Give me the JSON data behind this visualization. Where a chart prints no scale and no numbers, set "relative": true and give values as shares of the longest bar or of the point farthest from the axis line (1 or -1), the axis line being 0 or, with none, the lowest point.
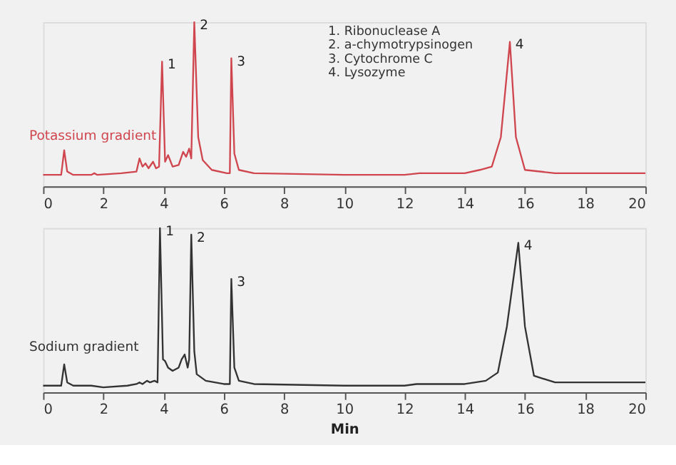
{
  "chart_data": [
    {
      "type": "line",
      "relative": true,
      "xlim": [
        0,
        20
      ],
      "xticks": [
        0,
        2,
        4,
        6,
        8,
        10,
        12,
        14,
        16,
        18,
        20
      ],
      "grid": false,
      "annotations": [
        "1.   Ribonuclease A",
        "2.   a-chymotrypsinogen",
        "3.   Cytochrome C",
        "4.   Lysozyme",
        {
          "text": "1",
          "x": 3.95,
          "y": 0.76
        },
        {
          "text": "2",
          "x": 5.02,
          "y": 1.0
        },
        {
          "text": "3",
          "x": 6.25,
          "y": 0.78
        },
        {
          "text": "4",
          "x": 15.5,
          "y": 0.88
        }
      ],
      "series": [
        {
          "name": "Potassium gradient",
          "color": "#d0464f",
          "x": [
            0,
            0.6,
            0.7,
            0.8,
            1.0,
            1.6,
            1.7,
            1.8,
            2.6,
            3.1,
            3.2,
            3.3,
            3.4,
            3.5,
            3.65,
            3.75,
            3.85,
            3.95,
            4.05,
            4.15,
            4.3,
            4.5,
            4.65,
            4.75,
            4.85,
            4.92,
            5.02,
            5.15,
            5.3,
            5.6,
            6.1,
            6.2,
            6.25,
            6.35,
            6.5,
            7,
            10,
            12,
            12.5,
            14,
            14.5,
            14.9,
            15.2,
            15.5,
            15.7,
            16,
            17,
            20
          ],
          "values": [
            0.07,
            0.07,
            0.22,
            0.09,
            0.07,
            0.07,
            0.08,
            0.07,
            0.08,
            0.09,
            0.17,
            0.12,
            0.14,
            0.11,
            0.15,
            0.11,
            0.12,
            0.76,
            0.15,
            0.19,
            0.12,
            0.13,
            0.21,
            0.18,
            0.23,
            0.17,
            1.0,
            0.3,
            0.16,
            0.1,
            0.08,
            0.08,
            0.78,
            0.2,
            0.1,
            0.08,
            0.07,
            0.07,
            0.08,
            0.08,
            0.1,
            0.12,
            0.3,
            0.88,
            0.3,
            0.1,
            0.08,
            0.08
          ]
        }
      ]
    },
    {
      "type": "line",
      "relative": true,
      "xlim": [
        0,
        20
      ],
      "xticks": [
        0,
        2,
        4,
        6,
        8,
        10,
        12,
        14,
        16,
        18,
        20
      ],
      "xlabel": "Min",
      "grid": false,
      "annotations": [
        {
          "text": "1",
          "x": 3.88,
          "y": 1.0
        },
        {
          "text": "2",
          "x": 4.92,
          "y": 0.96
        },
        {
          "text": "3",
          "x": 6.25,
          "y": 0.69
        },
        {
          "text": "4",
          "x": 15.78,
          "y": 0.91
        }
      ],
      "series": [
        {
          "name": "Sodium gradient",
          "color": "#333333",
          "x": [
            0,
            0.6,
            0.7,
            0.8,
            1.0,
            1.6,
            2.0,
            2.8,
            3.1,
            3.2,
            3.3,
            3.45,
            3.55,
            3.7,
            3.8,
            3.88,
            3.98,
            4.05,
            4.15,
            4.3,
            4.5,
            4.6,
            4.7,
            4.8,
            4.85,
            4.92,
            5.02,
            5.1,
            5.4,
            6.0,
            6.2,
            6.25,
            6.35,
            6.5,
            7,
            10,
            12,
            12.4,
            14,
            14.7,
            15.1,
            15.4,
            15.78,
            16.0,
            16.3,
            17,
            20
          ],
          "values": [
            0.04,
            0.04,
            0.17,
            0.06,
            0.04,
            0.04,
            0.03,
            0.04,
            0.05,
            0.06,
            0.05,
            0.07,
            0.06,
            0.07,
            0.06,
            1.0,
            0.2,
            0.19,
            0.15,
            0.13,
            0.15,
            0.2,
            0.23,
            0.15,
            0.2,
            0.96,
            0.25,
            0.11,
            0.07,
            0.05,
            0.05,
            0.69,
            0.15,
            0.07,
            0.05,
            0.04,
            0.04,
            0.05,
            0.05,
            0.07,
            0.12,
            0.4,
            0.91,
            0.4,
            0.1,
            0.06,
            0.06
          ]
        }
      ]
    }
  ]
}
